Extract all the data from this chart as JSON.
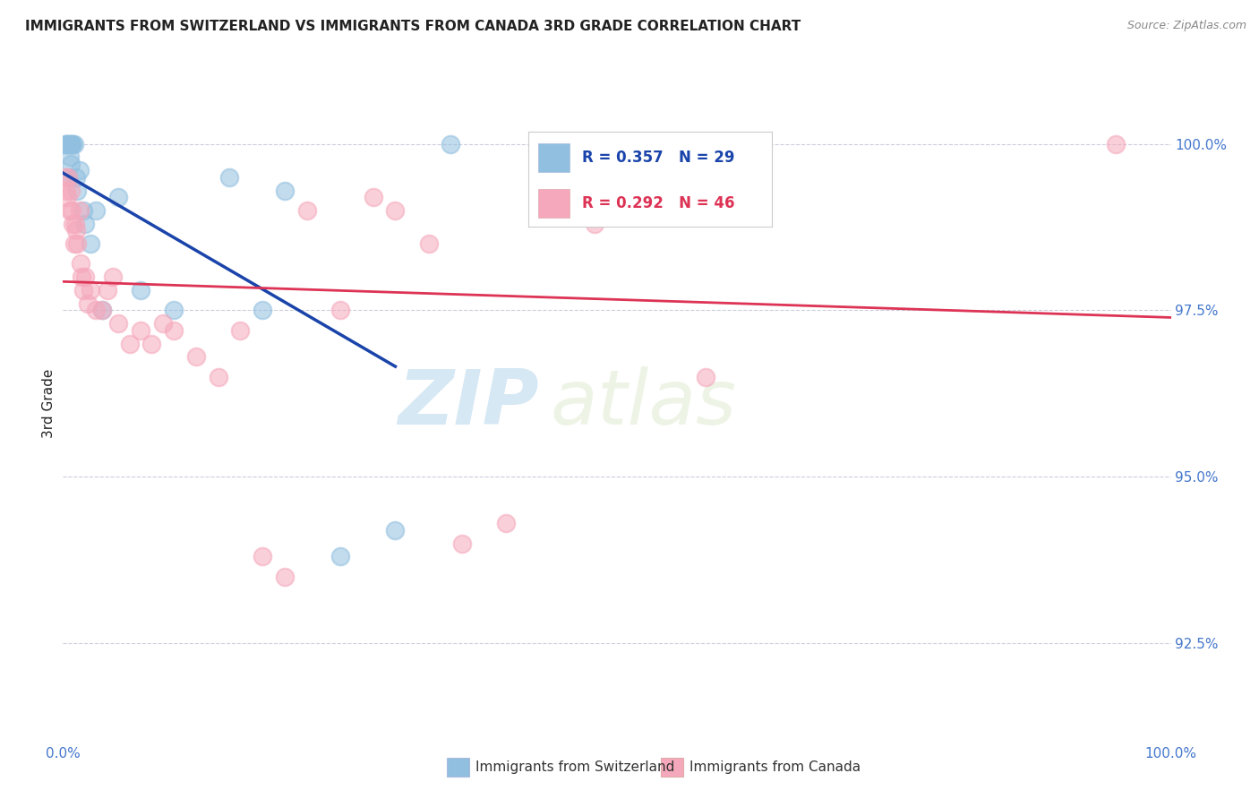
{
  "title": "IMMIGRANTS FROM SWITZERLAND VS IMMIGRANTS FROM CANADA 3RD GRADE CORRELATION CHART",
  "source": "Source: ZipAtlas.com",
  "ylabel": "3rd Grade",
  "xlim": [
    0,
    100
  ],
  "ylim": [
    91.0,
    101.2
  ],
  "yticks": [
    92.5,
    95.0,
    97.5,
    100.0
  ],
  "ytick_labels": [
    "92.5%",
    "95.0%",
    "97.5%",
    "100.0%"
  ],
  "legend_labels": [
    "Immigrants from Switzerland",
    "Immigrants from Canada"
  ],
  "blue_color": "#90bfdf",
  "pink_color": "#f5a8bb",
  "blue_line_color": "#1a44aa",
  "pink_line_color": "#dd3355",
  "r_blue": 0.357,
  "n_blue": 29,
  "r_pink": 0.292,
  "n_pink": 46,
  "blue_x": [
    0.2,
    0.3,
    0.4,
    0.5,
    0.5,
    0.6,
    0.6,
    0.7,
    0.7,
    0.8,
    0.9,
    1.0,
    1.2,
    1.3,
    1.5,
    1.8,
    2.0,
    2.5,
    3.0,
    3.5,
    5.0,
    7.0,
    10.0,
    15.0,
    18.0,
    20.0,
    25.0,
    30.0,
    35.0
  ],
  "blue_y": [
    100.0,
    100.0,
    100.0,
    100.0,
    99.5,
    100.0,
    99.8,
    100.0,
    99.7,
    100.0,
    100.0,
    100.0,
    99.5,
    99.3,
    99.6,
    99.0,
    98.8,
    98.5,
    99.0,
    97.5,
    99.2,
    97.8,
    97.5,
    99.5,
    97.5,
    99.3,
    93.8,
    94.2,
    100.0
  ],
  "pink_x": [
    0.2,
    0.3,
    0.4,
    0.5,
    0.6,
    0.7,
    0.8,
    0.9,
    1.0,
    1.1,
    1.2,
    1.3,
    1.5,
    1.6,
    1.7,
    1.8,
    2.0,
    2.2,
    2.5,
    3.0,
    3.5,
    4.0,
    4.5,
    5.0,
    6.0,
    7.0,
    8.0,
    9.0,
    10.0,
    12.0,
    14.0,
    16.0,
    18.0,
    20.0,
    22.0,
    25.0,
    28.0,
    30.0,
    33.0,
    36.0,
    40.0,
    44.0,
    48.0,
    52.0,
    58.0,
    95.0
  ],
  "pink_y": [
    99.5,
    99.3,
    99.2,
    99.5,
    99.0,
    99.3,
    99.0,
    98.8,
    98.5,
    98.8,
    98.7,
    98.5,
    99.0,
    98.2,
    98.0,
    97.8,
    98.0,
    97.6,
    97.8,
    97.5,
    97.5,
    97.8,
    98.0,
    97.3,
    97.0,
    97.2,
    97.0,
    97.3,
    97.2,
    96.8,
    96.5,
    97.2,
    93.8,
    93.5,
    99.0,
    97.5,
    99.2,
    99.0,
    98.5,
    94.0,
    94.3,
    99.0,
    98.8,
    99.3,
    96.5,
    100.0
  ],
  "watermark_zip": "ZIP",
  "watermark_atlas": "atlas",
  "bg_color": "#ffffff",
  "grid_color": "#ccccdd",
  "title_color": "#222222",
  "ylabel_color": "#222222",
  "tick_color": "#4477cc",
  "source_color": "#888888"
}
